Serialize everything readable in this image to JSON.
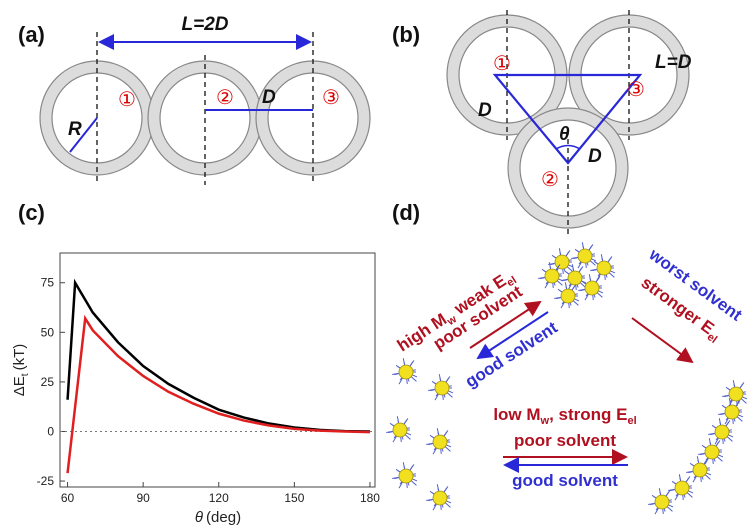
{
  "panels": [
    "(a)",
    "(b)",
    "(c)",
    "(d)"
  ],
  "diagram_a": {
    "length_label": "L=2D",
    "radius_label": "R",
    "distance_label": "D",
    "sites": [
      "①",
      "②",
      "③"
    ]
  },
  "diagram_b": {
    "length_label": "L=D",
    "side_labels": [
      "D",
      "D"
    ],
    "angle_label": "θ",
    "sites": [
      "①",
      "②",
      "③"
    ]
  },
  "chart_data": {
    "type": "line",
    "xlabel": {
      "symbol": "θ",
      "unit": "(deg)"
    },
    "ylabel": {
      "symbol": "ΔE",
      "sub": "t",
      "unit": "(kT)"
    },
    "xlim": [
      57,
      182
    ],
    "ylim": [
      -28,
      90
    ],
    "xticks": [
      60,
      90,
      120,
      150,
      180
    ],
    "yticks": [
      -25,
      0,
      25,
      50,
      75
    ],
    "hline": 0,
    "series": [
      {
        "color": "#000000",
        "x": [
          60,
          63,
          70,
          80,
          90,
          100,
          110,
          120,
          130,
          140,
          150,
          160,
          170,
          180
        ],
        "values": [
          16,
          75,
          60,
          45,
          33,
          24,
          17,
          11,
          7,
          4,
          2,
          0.8,
          0.2,
          0
        ]
      },
      {
        "color": "#e02020",
        "x": [
          60,
          67,
          70,
          80,
          90,
          100,
          110,
          120,
          130,
          140,
          150,
          160,
          170,
          180
        ],
        "values": [
          -21,
          57,
          51,
          38,
          28,
          20,
          14,
          9,
          5.5,
          3,
          1.3,
          0.4,
          0,
          -0.3
        ]
      }
    ]
  },
  "diagram_d": {
    "upper_left": {
      "line1": [
        "high M",
        "w",
        " weak E",
        "el"
      ],
      "forward": "poor solvent",
      "backward": "good solvent"
    },
    "upper_right": {
      "line1": "worst solvent",
      "line2": [
        "stronger E",
        "el"
      ]
    },
    "bottom": {
      "line1": [
        "low M",
        "w",
        ", strong E",
        "el"
      ],
      "forward": "poor solvent",
      "backward": "good solvent"
    }
  }
}
